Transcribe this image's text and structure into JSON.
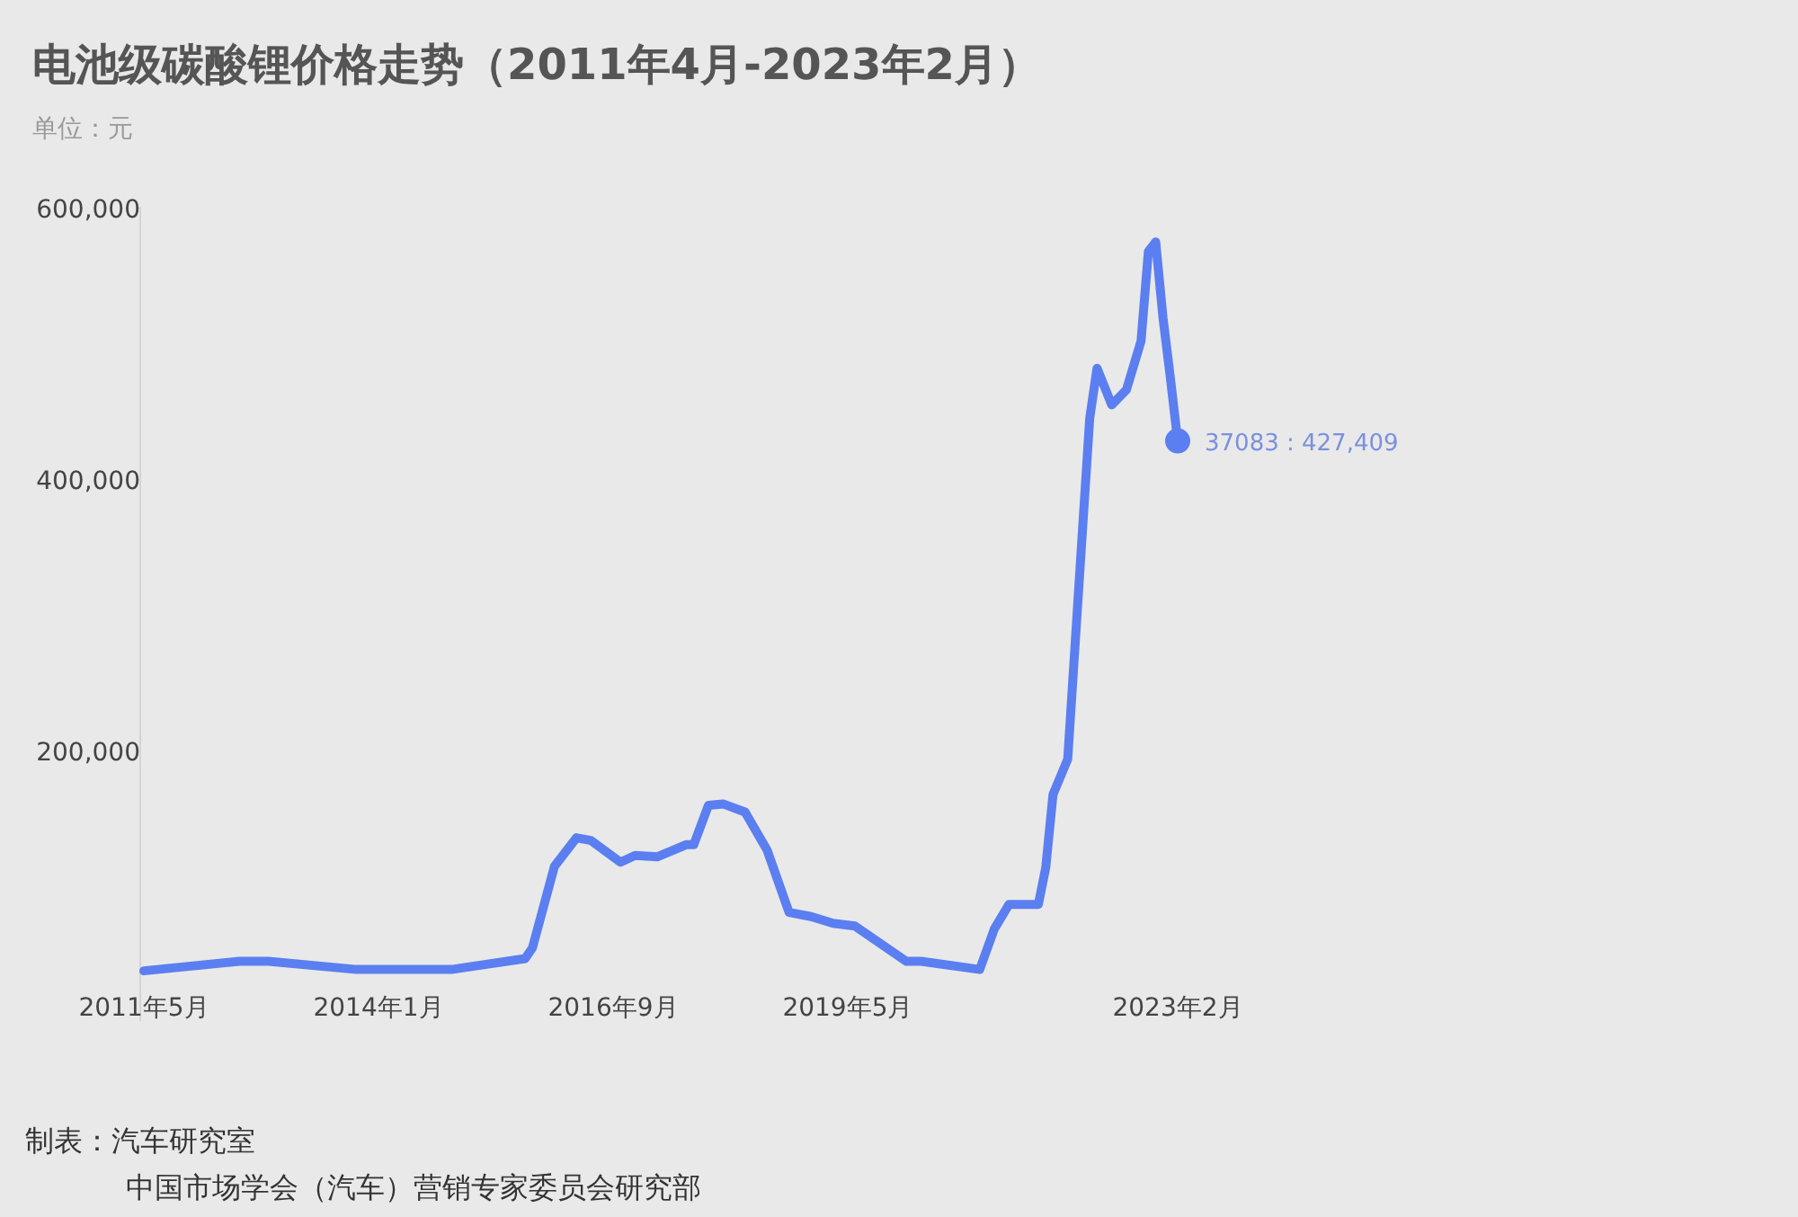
{
  "chart_data": {
    "type": "line",
    "title": "电池级碳酸锂价格走势（2011年4月-2023年2月）",
    "ylabel": "单位：元",
    "x": [
      "2011-05",
      "2012-06",
      "2012-10",
      "2013-10",
      "2014-11",
      "2015-09",
      "2015-10",
      "2016-01",
      "2016-04",
      "2016-06",
      "2016-10",
      "2016-12",
      "2017-03",
      "2017-07",
      "2017-08",
      "2017-10",
      "2017-12",
      "2018-03",
      "2018-06",
      "2018-09",
      "2018-12",
      "2019-03",
      "2019-06",
      "2020-01",
      "2020-03",
      "2020-11",
      "2021-01",
      "2021-03",
      "2021-07",
      "2021-08",
      "2021-09",
      "2021-11",
      "2022-02",
      "2022-03",
      "2022-05",
      "2022-07",
      "2022-09",
      "2022-10",
      "2022-11",
      "2022-12",
      "2023-01",
      "2023-02"
    ],
    "series": [
      {
        "color": "#5b7ff0",
        "values": [
          37000,
          44000,
          44000,
          38000,
          38000,
          46000,
          54000,
          114000,
          135000,
          133000,
          117000,
          122000,
          121000,
          130000,
          130000,
          159000,
          160000,
          154000,
          126000,
          80000,
          77000,
          72000,
          70000,
          44000,
          44000,
          38000,
          68000,
          86000,
          86000,
          113000,
          167000,
          193000,
          444000,
          481000,
          454000,
          465000,
          501000,
          567000,
          574000,
          518000,
          474000,
          427409
        ]
      }
    ],
    "xlim": [
      "2011-05",
      "2023-02"
    ],
    "ylim": [
      0,
      600000
    ],
    "xticks": [
      {
        "value": "2011-05",
        "label": "2011年5月"
      },
      {
        "value": "2014-01",
        "label": "2014年1月"
      },
      {
        "value": "2016-09",
        "label": "2016年9月"
      },
      {
        "value": "2019-05",
        "label": "2019年5月"
      },
      {
        "value": "2023-02",
        "label": "2023年2月"
      }
    ],
    "yticks": [
      {
        "value": 200000,
        "label": "200,000"
      },
      {
        "value": 400000,
        "label": "400,000"
      },
      {
        "value": 600000,
        "label": "600,000"
      }
    ],
    "grid": false,
    "marker": "none",
    "line_style": "solid",
    "annotations": [
      {
        "text": "37083 : 427,409",
        "x": "2023-02",
        "y": 427409
      },
      "制表：汽车研究室",
      "中国市场学会（汽车）营销专家委员会研究部"
    ]
  }
}
